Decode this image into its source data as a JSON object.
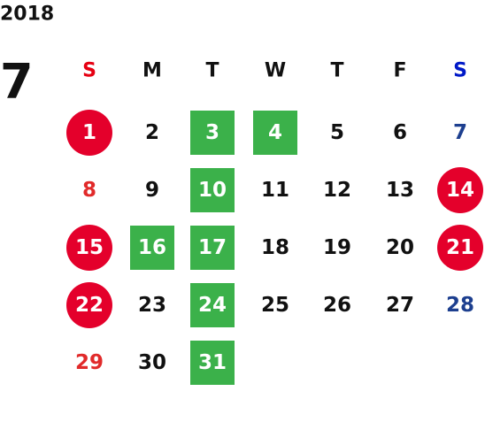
{
  "calendar": {
    "year": "2018",
    "month": "7",
    "weekdays": [
      {
        "label": "S",
        "color": "#e60012"
      },
      {
        "label": "M"
      },
      {
        "label": "T"
      },
      {
        "label": "W"
      },
      {
        "label": "T"
      },
      {
        "label": "F"
      },
      {
        "label": "S",
        "color": "#0019c8"
      }
    ],
    "weeks": [
      [
        {
          "day": 1,
          "shape": "circle",
          "fill": "#e4002b",
          "color": "#ffffff"
        },
        {
          "day": 2
        },
        {
          "day": 3,
          "shape": "square",
          "fill": "#3bb14a",
          "color": "#ffffff"
        },
        {
          "day": 4,
          "shape": "square",
          "fill": "#3bb14a",
          "color": "#ffffff"
        },
        {
          "day": 5
        },
        {
          "day": 6
        },
        {
          "day": 7,
          "color": "#1d3f8f"
        }
      ],
      [
        {
          "day": 8,
          "color": "#e12a2a"
        },
        {
          "day": 9
        },
        {
          "day": 10,
          "shape": "square",
          "fill": "#3bb14a",
          "color": "#ffffff"
        },
        {
          "day": 11
        },
        {
          "day": 12
        },
        {
          "day": 13
        },
        {
          "day": 14,
          "shape": "circle",
          "fill": "#e4002b",
          "color": "#ffffff"
        }
      ],
      [
        {
          "day": 15,
          "shape": "circle",
          "fill": "#e4002b",
          "color": "#ffffff"
        },
        {
          "day": 16,
          "shape": "square",
          "fill": "#3bb14a",
          "color": "#ffffff"
        },
        {
          "day": 17,
          "shape": "square",
          "fill": "#3bb14a",
          "color": "#ffffff"
        },
        {
          "day": 18
        },
        {
          "day": 19
        },
        {
          "day": 20
        },
        {
          "day": 21,
          "shape": "circle",
          "fill": "#e4002b",
          "color": "#ffffff"
        }
      ],
      [
        {
          "day": 22,
          "shape": "circle",
          "fill": "#e4002b",
          "color": "#ffffff"
        },
        {
          "day": 23
        },
        {
          "day": 24,
          "shape": "square",
          "fill": "#3bb14a",
          "color": "#ffffff"
        },
        {
          "day": 25
        },
        {
          "day": 26
        },
        {
          "day": 27
        },
        {
          "day": 28,
          "color": "#1d3f8f"
        }
      ],
      [
        {
          "day": 29,
          "color": "#e12a2a"
        },
        {
          "day": 30
        },
        {
          "day": 31,
          "shape": "square",
          "fill": "#3bb14a",
          "color": "#ffffff"
        }
      ]
    ]
  }
}
